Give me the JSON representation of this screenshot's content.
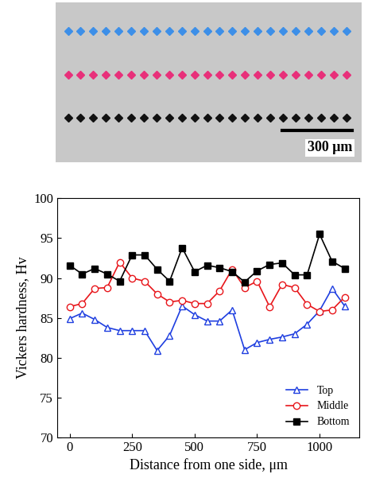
{
  "chart_data": {
    "type": "line",
    "x_label": "Distance from one side, μm",
    "y_label": "Vickers hardness, Hv",
    "x": [
      0,
      50,
      100,
      150,
      200,
      250,
      300,
      350,
      400,
      450,
      500,
      550,
      600,
      650,
      700,
      750,
      800,
      850,
      900,
      950,
      1000,
      1050,
      1100
    ],
    "series": [
      {
        "name": "Top",
        "color": "#1f3fe0",
        "marker": "triangle_open",
        "line_style": "solid",
        "values": [
          84.9,
          85.6,
          84.8,
          83.8,
          83.4,
          83.4,
          83.4,
          80.9,
          82.8,
          86.5,
          85.4,
          84.6,
          84.6,
          86.0,
          81.0,
          81.9,
          82.3,
          82.6,
          83.0,
          84.2,
          85.9,
          88.7,
          86.5
        ]
      },
      {
        "name": "Middle",
        "color": "#e8161b",
        "marker": "circle_open",
        "line_style": "solid",
        "values": [
          86.4,
          86.8,
          88.7,
          88.8,
          92.0,
          90.0,
          89.6,
          88.0,
          87.0,
          87.2,
          86.8,
          86.8,
          88.4,
          91.1,
          88.8,
          89.6,
          86.4,
          89.2,
          88.8,
          86.7,
          85.8,
          86.0,
          87.6
        ]
      },
      {
        "name": "Bottom",
        "color": "#000000",
        "marker": "square_filled",
        "line_style": "solid",
        "values": [
          91.6,
          90.5,
          91.2,
          90.5,
          89.6,
          92.9,
          92.9,
          91.1,
          89.6,
          93.8,
          90.8,
          91.6,
          91.3,
          90.8,
          89.5,
          90.9,
          91.7,
          91.9,
          90.4,
          90.4,
          95.5,
          92.1,
          91.2
        ]
      }
    ],
    "xlim": [
      -50,
      1160
    ],
    "xticks": [
      0,
      250,
      500,
      750,
      1000
    ],
    "ylim": [
      70,
      100
    ],
    "yticks": [
      70,
      75,
      80,
      85,
      90,
      95,
      100
    ],
    "grid": false,
    "legend": "lower right"
  },
  "micrograph": {
    "scale_bar_label": "300 μm"
  }
}
